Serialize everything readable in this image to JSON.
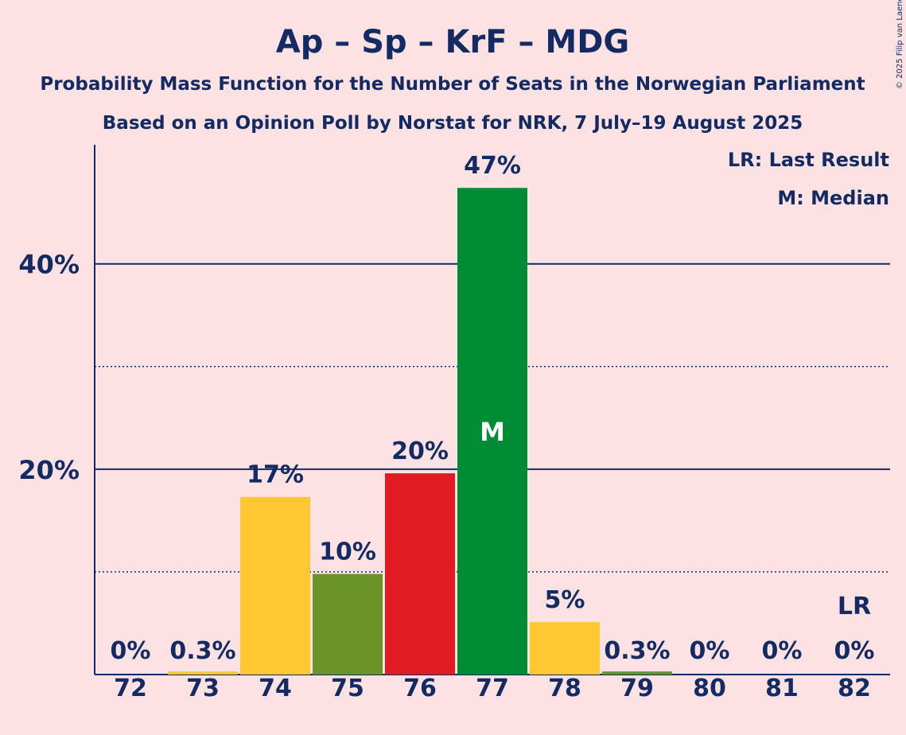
{
  "chart_data": {
    "type": "bar",
    "title": "Ap – Sp – KrF – MDG",
    "subtitle": "Probability Mass Function for the Number of Seats in the Norwegian Parliament",
    "source": "Based on an Opinion Poll by Norstat for NRK, 7 July–19 August 2025",
    "copyright": "© 2025 Filip van Laenen",
    "legend": [
      "LR: Last Result",
      "M: Median"
    ],
    "legend_position": "top-right",
    "categories": [
      "72",
      "73",
      "74",
      "75",
      "76",
      "77",
      "78",
      "79",
      "80",
      "81",
      "82"
    ],
    "values": [
      0,
      0.3,
      17.3,
      9.8,
      19.6,
      47.4,
      5.1,
      0.3,
      0,
      0,
      0
    ],
    "value_labels": [
      "0%",
      "0.3%",
      "17%",
      "10%",
      "20%",
      "47%",
      "5%",
      "0.3%",
      "0%",
      "0%",
      "0%"
    ],
    "bar_colors": [
      "#ffc832",
      "#ffc832",
      "#ffc832",
      "#6a9428",
      "#e01b22",
      "#008c35",
      "#ffc832",
      "#6a9428",
      "#e01b22",
      "#008c35",
      "#ffc832"
    ],
    "median_seat": "77",
    "median_marker": "M",
    "last_result_seat": "82",
    "last_result_marker": "LR",
    "ylim": [
      0,
      51.6
    ],
    "major_ticks": [
      20,
      40
    ],
    "major_tick_labels": [
      "20%",
      "40%"
    ],
    "minor_ticks": [
      10,
      30
    ],
    "grid": true,
    "colors": {
      "background": "#fde2e4",
      "text": "#132a63"
    }
  }
}
